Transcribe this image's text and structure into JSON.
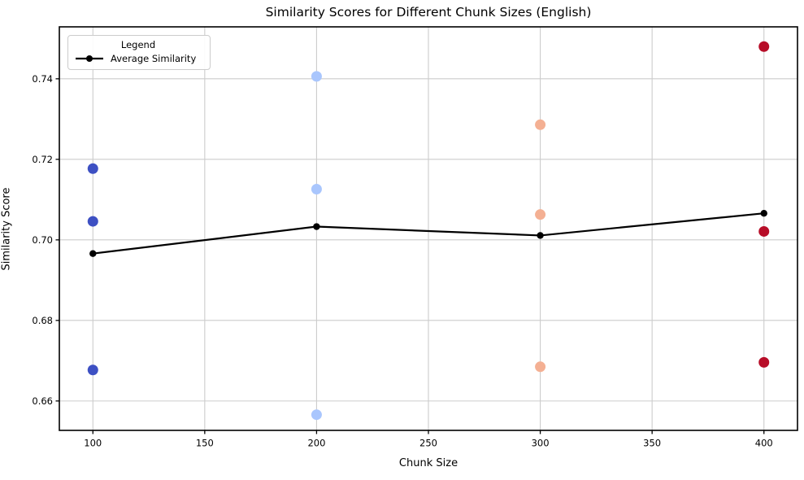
{
  "chart_data": {
    "type": "scatter",
    "title": "Similarity Scores for Different Chunk Sizes (English)",
    "xlabel": "Chunk Size",
    "ylabel": "Similarity Score",
    "xlim": [
      85,
      415
    ],
    "ylim": [
      0.6527,
      0.7529
    ],
    "xticks": [
      100,
      150,
      200,
      250,
      300,
      350,
      400
    ],
    "yticks": [
      0.66,
      0.68,
      0.7,
      0.72,
      0.74
    ],
    "grid": true,
    "grid_color": "#cccccc",
    "axis_color": "#000000",
    "background": "#ffffff",
    "legend": {
      "title": "Legend",
      "position": "upper-left",
      "entries": [
        {
          "label": "Average Similarity",
          "color": "#000000",
          "marker": "line-dot"
        }
      ]
    },
    "groups": [
      {
        "x": 100,
        "color": "#3d50c3",
        "values": [
          0.7177,
          0.7046,
          0.6677
        ]
      },
      {
        "x": 200,
        "color": "#a9c6fd",
        "values": [
          0.7406,
          0.7126,
          0.6566
        ]
      },
      {
        "x": 300,
        "color": "#f4b093",
        "values": [
          0.7286,
          0.7063,
          0.6685
        ]
      },
      {
        "x": 400,
        "color": "#b70d28",
        "values": [
          0.748,
          0.7021,
          0.6696
        ]
      }
    ],
    "average_series": {
      "name": "Average Similarity",
      "x": [
        100,
        200,
        300,
        400
      ],
      "values": [
        0.6966,
        0.7033,
        0.7011,
        0.7066
      ],
      "color": "#000000"
    }
  }
}
